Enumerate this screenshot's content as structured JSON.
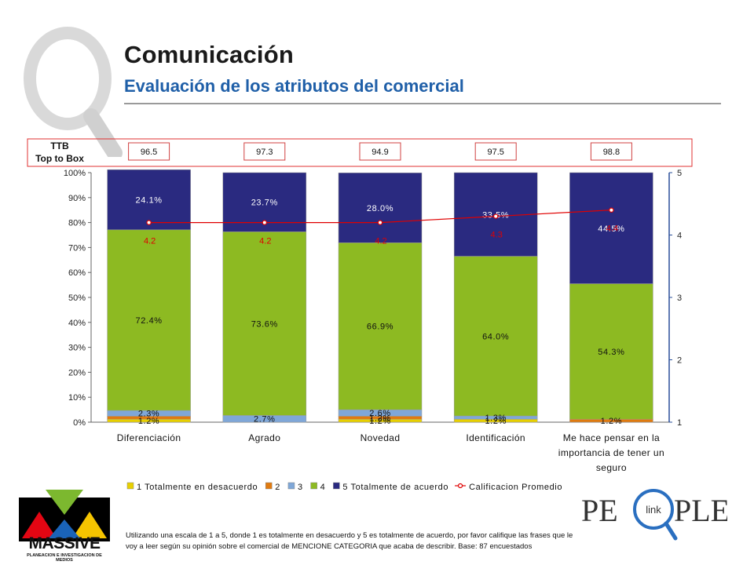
{
  "header": {
    "title": "Comunicación",
    "subtitle": "Evaluación de los atributos del comercial"
  },
  "ttb": {
    "label_line1": "TTB",
    "label_line2": "Top to Box",
    "values": [
      "96.5",
      "97.3",
      "94.9",
      "97.5",
      "98.8"
    ]
  },
  "chart_data": {
    "type": "bar",
    "stacked": true,
    "categories": [
      "Diferenciación",
      "Agrado",
      "Novedad",
      "Identificación",
      "Me hace pensar en la importancia de tener un seguro"
    ],
    "category_lines": [
      [
        "Diferenciación"
      ],
      [
        "Agrado"
      ],
      [
        "Novedad"
      ],
      [
        "Identificación"
      ],
      [
        "Me hace pensar en la",
        "importancia de tener un",
        "seguro"
      ]
    ],
    "series": [
      {
        "name": "1 Totalmente en desacuerdo",
        "color": "#e8d000",
        "values": [
          1.2,
          0.0,
          1.2,
          1.2,
          0.0
        ]
      },
      {
        "name": "2",
        "color": "#e07a10",
        "values": [
          1.2,
          0.0,
          1.2,
          0.0,
          1.2
        ]
      },
      {
        "name": "3",
        "color": "#7fa7d8",
        "values": [
          2.3,
          2.7,
          2.6,
          1.3,
          0.0
        ]
      },
      {
        "name": "4",
        "color": "#8dba22",
        "values": [
          72.4,
          73.6,
          66.9,
          64.0,
          54.3
        ]
      },
      {
        "name": "5 Totalmente de acuerdo",
        "color": "#2a2a80",
        "values": [
          24.1,
          23.7,
          28.0,
          33.5,
          44.5
        ]
      }
    ],
    "value_labels": [
      [
        {
          "series": 0,
          "text": "1.2%"
        },
        {
          "series": 2,
          "text": "2.3%"
        },
        {
          "series": 3,
          "text": "72.4%"
        },
        {
          "series": 4,
          "text": "24.1%"
        }
      ],
      [
        {
          "series": 2,
          "text": "2.7%"
        },
        {
          "series": 3,
          "text": "73.6%"
        },
        {
          "series": 4,
          "text": "23.7%"
        }
      ],
      [
        {
          "series": 0,
          "text": "1.2%"
        },
        {
          "series": 1,
          "text": "1.2%"
        },
        {
          "series": 2,
          "text": "2.6%"
        },
        {
          "series": 3,
          "text": "66.9%"
        },
        {
          "series": 4,
          "text": "28.0%"
        }
      ],
      [
        {
          "series": 0,
          "text": "1.2%"
        },
        {
          "series": 2,
          "text": "1.3%"
        },
        {
          "series": 3,
          "text": "64.0%"
        },
        {
          "series": 4,
          "text": "33.5%"
        }
      ],
      [
        {
          "series": 1,
          "text": "1.2%"
        },
        {
          "series": 3,
          "text": "54.3%"
        },
        {
          "series": 4,
          "text": "44.5%"
        }
      ]
    ],
    "line_series": {
      "name": "Calificacion Promedio",
      "color": "#e00000",
      "values": [
        4.2,
        4.2,
        4.2,
        4.3,
        4.4
      ],
      "labels": [
        "4.2",
        "4.2",
        "4.2",
        "4.3",
        "4.4"
      ]
    },
    "y_left": {
      "min": 0,
      "max": 100,
      "ticks": [
        "0%",
        "10%",
        "20%",
        "30%",
        "40%",
        "50%",
        "60%",
        "70%",
        "80%",
        "90%",
        "100%"
      ]
    },
    "y_right": {
      "min": 1,
      "max": 5,
      "ticks": [
        "1",
        "2",
        "3",
        "4",
        "5"
      ]
    },
    "legend_position": "bottom"
  },
  "footnote": {
    "line1": "Utilizando una escala de 1 a 5, donde 1 es totalmente en desacuerdo y 5 es totalmente de acuerdo, por favor califique las frases que le",
    "line2": "voy a leer según su opinión sobre el comercial de MENCIONE CATEGORIA que acaba de describir. Base: 87 encuestados"
  },
  "logos": {
    "massive_word": "MASSIVE",
    "massive_tag": "PLANEACION E INVESTIGACION DE MEDIOS",
    "people_left": "PE",
    "people_mid": "link",
    "people_right": "PLE"
  },
  "colors": {
    "title": "#1a1a1a",
    "subtitle": "#1f5fa8",
    "ttb_border": "#e03030",
    "axis_right": "#2a4f9a"
  }
}
